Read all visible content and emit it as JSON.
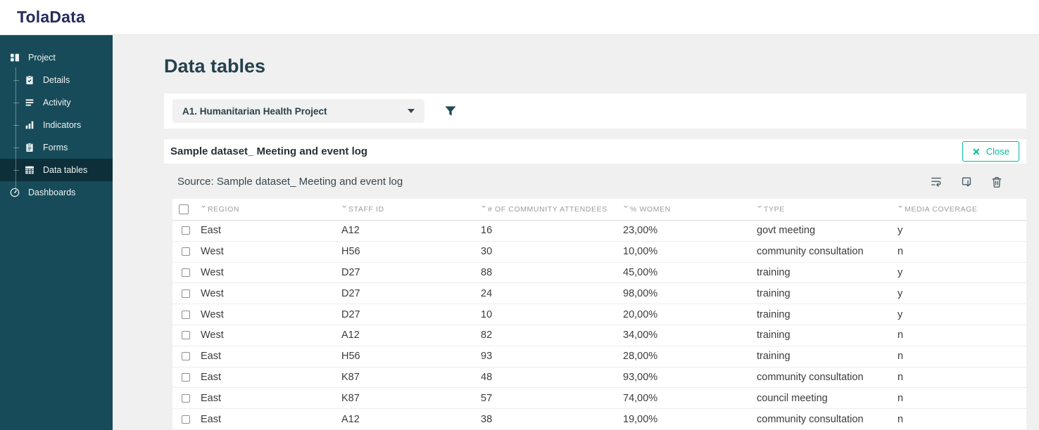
{
  "brand": {
    "logo": "TolaData"
  },
  "sidebar": {
    "items": [
      {
        "label": "Project",
        "icon": "project-icon"
      },
      {
        "label": "Details",
        "icon": "details-icon"
      },
      {
        "label": "Activity",
        "icon": "activity-icon"
      },
      {
        "label": "Indicators",
        "icon": "indicators-icon"
      },
      {
        "label": "Forms",
        "icon": "forms-icon"
      },
      {
        "label": "Data tables",
        "icon": "data-tables-icon",
        "active": true
      },
      {
        "label": "Dashboards",
        "icon": "dashboards-icon"
      }
    ]
  },
  "page": {
    "title": "Data tables"
  },
  "toolbar": {
    "project_select": "A1. Humanitarian Health Project"
  },
  "dataset_panel": {
    "title": "Sample dataset_ Meeting and event log",
    "close_label": "Close",
    "source_label": "Source: Sample dataset_ Meeting and event log",
    "action_icons": [
      "wrap-text-icon",
      "export-icon",
      "trash-icon"
    ]
  },
  "table": {
    "columns": [
      "REGION",
      "STAFF ID",
      "# OF COMMUNITY ATTENDEES",
      "% WOMEN",
      "TYPE",
      "MEDIA COVERAGE"
    ],
    "rows": [
      [
        "East",
        "A12",
        "16",
        "23,00%",
        "govt meeting",
        "y"
      ],
      [
        "West",
        "H56",
        "30",
        "10,00%",
        "community consultation",
        "n"
      ],
      [
        "West",
        "D27",
        "88",
        "45,00%",
        "training",
        "y"
      ],
      [
        "West",
        "D27",
        "24",
        "98,00%",
        "training",
        "y"
      ],
      [
        "West",
        "D27",
        "10",
        "20,00%",
        "training",
        "y"
      ],
      [
        "West",
        "A12",
        "82",
        "34,00%",
        "training",
        "n"
      ],
      [
        "East",
        "H56",
        "93",
        "28,00%",
        "training",
        "n"
      ],
      [
        "East",
        "K87",
        "48",
        "93,00%",
        "community consultation",
        "n"
      ],
      [
        "East",
        "K87",
        "57",
        "74,00%",
        "council meeting",
        "n"
      ],
      [
        "East",
        "A12",
        "38",
        "19,00%",
        "community consultation",
        "n"
      ]
    ]
  },
  "colors": {
    "sidebar_bg": "#174b59",
    "sidebar_active_bg": "#0d2f3a",
    "accent_green": "#00bd9c",
    "logo_navy": "#242b5e",
    "heading_teal": "#25414d",
    "icon_slate": "#455a64",
    "page_bg": "#f0f0f0"
  }
}
